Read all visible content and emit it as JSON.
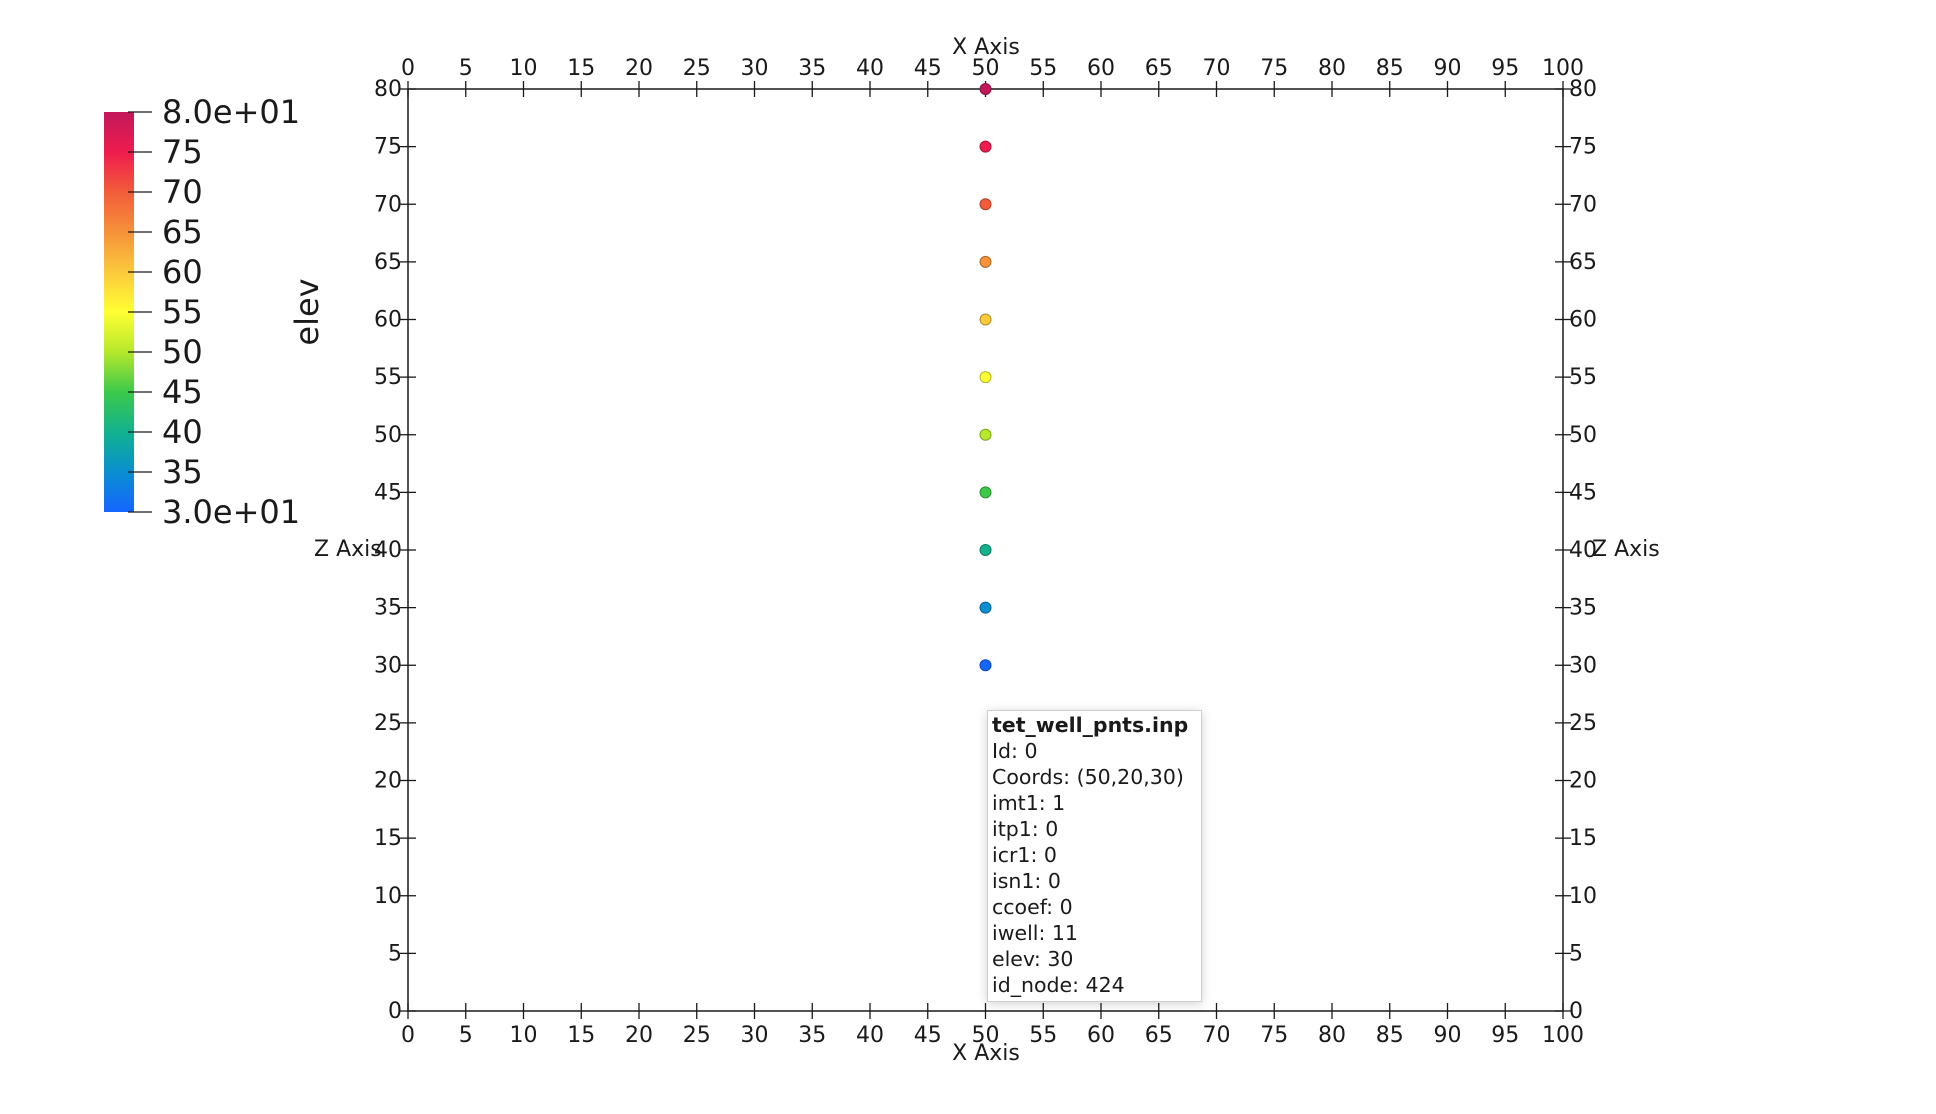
{
  "chart_data": {
    "type": "scatter",
    "x_axis": {
      "title": "X Axis",
      "range": [
        0,
        100
      ],
      "ticks": [
        "0",
        "5",
        "10",
        "15",
        "20",
        "25",
        "30",
        "35",
        "40",
        "45",
        "50",
        "55",
        "60",
        "65",
        "70",
        "75",
        "80",
        "85",
        "90",
        "95",
        "100"
      ]
    },
    "z_axis": {
      "title": "Z Axis",
      "range": [
        0,
        80
      ],
      "ticks": [
        "0",
        "5",
        "10",
        "15",
        "20",
        "25",
        "30",
        "35",
        "40",
        "45",
        "50",
        "55",
        "60",
        "65",
        "70",
        "75",
        "80"
      ]
    },
    "grid": false,
    "points": [
      {
        "x": 50,
        "z": 80,
        "elev": 80
      },
      {
        "x": 50,
        "z": 75,
        "elev": 75
      },
      {
        "x": 50,
        "z": 70,
        "elev": 70
      },
      {
        "x": 50,
        "z": 65,
        "elev": 65
      },
      {
        "x": 50,
        "z": 60,
        "elev": 60
      },
      {
        "x": 50,
        "z": 55,
        "elev": 55
      },
      {
        "x": 50,
        "z": 50,
        "elev": 50
      },
      {
        "x": 50,
        "z": 45,
        "elev": 45
      },
      {
        "x": 50,
        "z": 40,
        "elev": 40
      },
      {
        "x": 50,
        "z": 35,
        "elev": 35
      },
      {
        "x": 50,
        "z": 30,
        "elev": 30
      }
    ],
    "colorbar": {
      "title": "elev",
      "range": [
        30,
        80
      ],
      "placement": "top-left",
      "labels": [
        "8.0e+01",
        "75",
        "70",
        "65",
        "60",
        "55",
        "50",
        "45",
        "40",
        "35",
        "3.0e+01"
      ],
      "colors": [
        "#c2185b",
        "#ee1c4e",
        "#f25c3a",
        "#f6923a",
        "#fbc93c",
        "#ffff33",
        "#b6e82c",
        "#3cc94a",
        "#12b28f",
        "#0a8fd0",
        "#1565ff"
      ]
    }
  },
  "tooltip": {
    "title": "tet_well_pnts.inp",
    "rows": [
      "Id: 0",
      "Coords: (50,20,30)",
      "imt1: 1",
      "itp1: 0",
      "icr1: 0",
      "isn1: 0",
      "ccoef: 0",
      "iwell: 11",
      "elev: 30",
      "id_node: 424"
    ]
  }
}
